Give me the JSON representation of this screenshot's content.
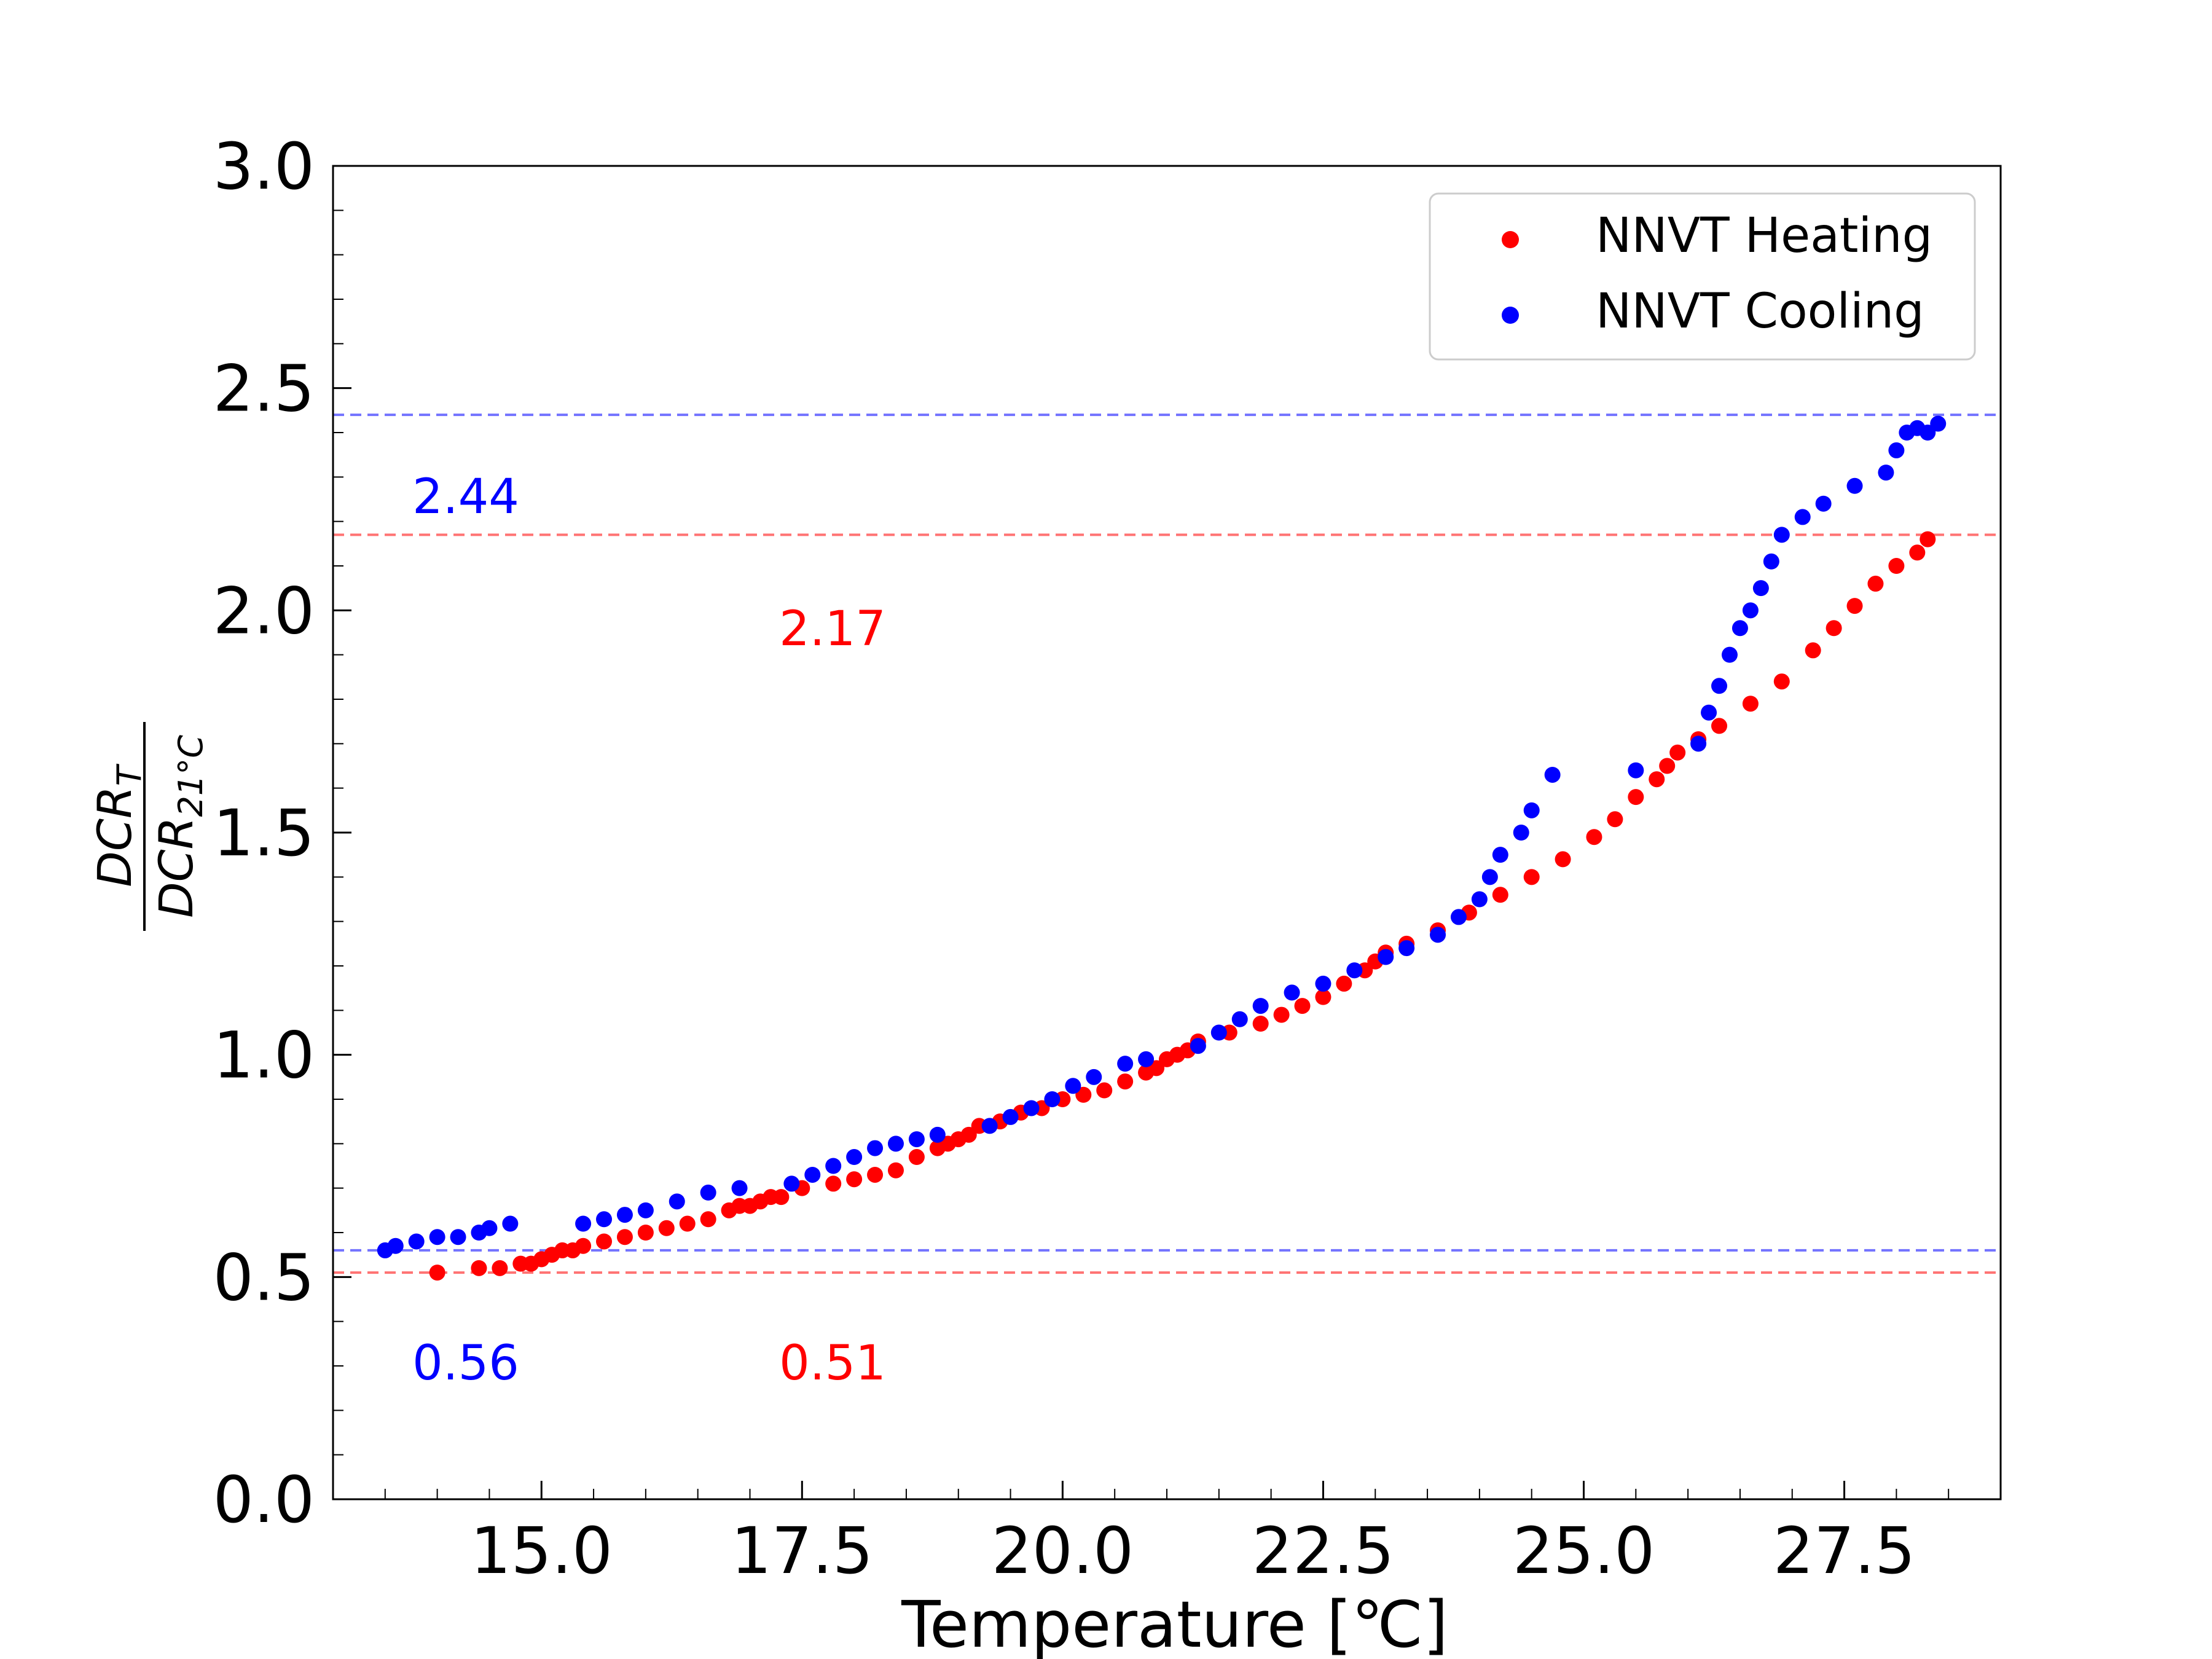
{
  "chart_data": {
    "type": "scatter",
    "title": "",
    "xlabel": "Temperature [℃]",
    "ylabel": "DCR_T / DCR_21°C",
    "ylabel_numerator": "DCR",
    "ylabel_numerator_sub": "T",
    "ylabel_denominator": "DCR",
    "ylabel_denominator_sub": "21°C",
    "xlim": [
      13.0,
      29.0
    ],
    "ylim": [
      0.0,
      3.0
    ],
    "x_ticks": [
      15.0,
      17.5,
      20.0,
      22.5,
      25.0,
      27.5
    ],
    "x_tick_labels": [
      "15.0",
      "17.5",
      "20.0",
      "22.5",
      "25.0",
      "27.5"
    ],
    "y_ticks": [
      0.0,
      0.5,
      1.0,
      1.5,
      2.0,
      2.5,
      3.0
    ],
    "y_tick_labels": [
      "0.0",
      "0.5",
      "1.0",
      "1.5",
      "2.0",
      "2.5",
      "3.0"
    ],
    "grid": false,
    "legend": {
      "position": "top-right",
      "entries": [
        "NNVT Heating",
        "NNVT Cooling"
      ]
    },
    "series": [
      {
        "name": "NNVT Heating",
        "color": "#ff0000",
        "points": [
          [
            14.0,
            0.51
          ],
          [
            14.4,
            0.52
          ],
          [
            14.6,
            0.52
          ],
          [
            14.8,
            0.53
          ],
          [
            14.9,
            0.53
          ],
          [
            15.0,
            0.54
          ],
          [
            15.1,
            0.55
          ],
          [
            15.2,
            0.56
          ],
          [
            15.3,
            0.56
          ],
          [
            15.4,
            0.57
          ],
          [
            15.6,
            0.58
          ],
          [
            15.8,
            0.59
          ],
          [
            16.0,
            0.6
          ],
          [
            16.2,
            0.61
          ],
          [
            16.4,
            0.62
          ],
          [
            16.6,
            0.63
          ],
          [
            16.8,
            0.65
          ],
          [
            16.9,
            0.66
          ],
          [
            17.0,
            0.66
          ],
          [
            17.1,
            0.67
          ],
          [
            17.2,
            0.68
          ],
          [
            17.3,
            0.68
          ],
          [
            17.5,
            0.7
          ],
          [
            17.8,
            0.71
          ],
          [
            18.0,
            0.72
          ],
          [
            18.2,
            0.73
          ],
          [
            18.4,
            0.74
          ],
          [
            18.6,
            0.77
          ],
          [
            18.8,
            0.79
          ],
          [
            18.9,
            0.8
          ],
          [
            19.0,
            0.81
          ],
          [
            19.1,
            0.82
          ],
          [
            19.2,
            0.84
          ],
          [
            19.4,
            0.85
          ],
          [
            19.6,
            0.87
          ],
          [
            19.8,
            0.88
          ],
          [
            20.0,
            0.9
          ],
          [
            20.2,
            0.91
          ],
          [
            20.4,
            0.92
          ],
          [
            20.6,
            0.94
          ],
          [
            20.8,
            0.96
          ],
          [
            20.9,
            0.97
          ],
          [
            21.0,
            0.99
          ],
          [
            21.1,
            1.0
          ],
          [
            21.2,
            1.01
          ],
          [
            21.3,
            1.03
          ],
          [
            21.6,
            1.05
          ],
          [
            21.9,
            1.07
          ],
          [
            22.1,
            1.09
          ],
          [
            22.3,
            1.11
          ],
          [
            22.5,
            1.13
          ],
          [
            22.7,
            1.16
          ],
          [
            22.9,
            1.19
          ],
          [
            23.0,
            1.21
          ],
          [
            23.1,
            1.23
          ],
          [
            23.3,
            1.25
          ],
          [
            23.6,
            1.28
          ],
          [
            23.9,
            1.32
          ],
          [
            24.2,
            1.36
          ],
          [
            24.5,
            1.4
          ],
          [
            24.8,
            1.44
          ],
          [
            25.1,
            1.49
          ],
          [
            25.3,
            1.53
          ],
          [
            25.5,
            1.58
          ],
          [
            25.7,
            1.62
          ],
          [
            25.8,
            1.65
          ],
          [
            25.9,
            1.68
          ],
          [
            26.1,
            1.71
          ],
          [
            26.3,
            1.74
          ],
          [
            26.6,
            1.79
          ],
          [
            26.9,
            1.84
          ],
          [
            27.2,
            1.91
          ],
          [
            27.4,
            1.96
          ],
          [
            27.6,
            2.01
          ],
          [
            27.8,
            2.06
          ],
          [
            28.0,
            2.1
          ],
          [
            28.2,
            2.13
          ],
          [
            28.3,
            2.16
          ]
        ]
      },
      {
        "name": "NNVT Cooling",
        "color": "#0000ff",
        "points": [
          [
            13.5,
            0.56
          ],
          [
            13.6,
            0.57
          ],
          [
            13.8,
            0.58
          ],
          [
            14.0,
            0.59
          ],
          [
            14.2,
            0.59
          ],
          [
            14.4,
            0.6
          ],
          [
            14.5,
            0.61
          ],
          [
            14.7,
            0.62
          ],
          [
            15.4,
            0.62
          ],
          [
            15.6,
            0.63
          ],
          [
            15.8,
            0.64
          ],
          [
            16.0,
            0.65
          ],
          [
            16.3,
            0.67
          ],
          [
            16.6,
            0.69
          ],
          [
            16.9,
            0.7
          ],
          [
            17.4,
            0.71
          ],
          [
            17.6,
            0.73
          ],
          [
            17.8,
            0.75
          ],
          [
            18.0,
            0.77
          ],
          [
            18.2,
            0.79
          ],
          [
            18.4,
            0.8
          ],
          [
            18.6,
            0.81
          ],
          [
            18.8,
            0.82
          ],
          [
            19.3,
            0.84
          ],
          [
            19.5,
            0.86
          ],
          [
            19.7,
            0.88
          ],
          [
            19.9,
            0.9
          ],
          [
            20.1,
            0.93
          ],
          [
            20.3,
            0.95
          ],
          [
            20.6,
            0.98
          ],
          [
            20.8,
            0.99
          ],
          [
            21.3,
            1.02
          ],
          [
            21.5,
            1.05
          ],
          [
            21.7,
            1.08
          ],
          [
            21.9,
            1.11
          ],
          [
            22.2,
            1.14
          ],
          [
            22.5,
            1.16
          ],
          [
            22.8,
            1.19
          ],
          [
            23.1,
            1.22
          ],
          [
            23.3,
            1.24
          ],
          [
            23.6,
            1.27
          ],
          [
            23.8,
            1.31
          ],
          [
            24.0,
            1.35
          ],
          [
            24.1,
            1.4
          ],
          [
            24.2,
            1.45
          ],
          [
            24.4,
            1.5
          ],
          [
            24.5,
            1.55
          ],
          [
            24.7,
            1.63
          ],
          [
            25.5,
            1.64
          ],
          [
            26.1,
            1.7
          ],
          [
            26.2,
            1.77
          ],
          [
            26.3,
            1.83
          ],
          [
            26.4,
            1.9
          ],
          [
            26.5,
            1.96
          ],
          [
            26.6,
            2.0
          ],
          [
            26.7,
            2.05
          ],
          [
            26.8,
            2.11
          ],
          [
            26.9,
            2.17
          ],
          [
            27.1,
            2.21
          ],
          [
            27.3,
            2.24
          ],
          [
            27.6,
            2.28
          ],
          [
            27.9,
            2.31
          ],
          [
            28.0,
            2.36
          ],
          [
            28.1,
            2.4
          ],
          [
            28.2,
            2.41
          ],
          [
            28.3,
            2.4
          ],
          [
            28.4,
            2.42
          ]
        ]
      }
    ],
    "reference_lines": [
      {
        "value": 2.44,
        "label": "2.44",
        "color": "#0000ff",
        "series": "NNVT Cooling",
        "kind": "max"
      },
      {
        "value": 2.17,
        "label": "2.17",
        "color": "#ff0000",
        "series": "NNVT Heating",
        "kind": "max"
      },
      {
        "value": 0.56,
        "label": "0.56",
        "color": "#0000ff",
        "series": "NNVT Cooling",
        "kind": "min"
      },
      {
        "value": 0.51,
        "label": "0.51",
        "color": "#ff0000",
        "series": "NNVT Heating",
        "kind": "min"
      }
    ]
  }
}
